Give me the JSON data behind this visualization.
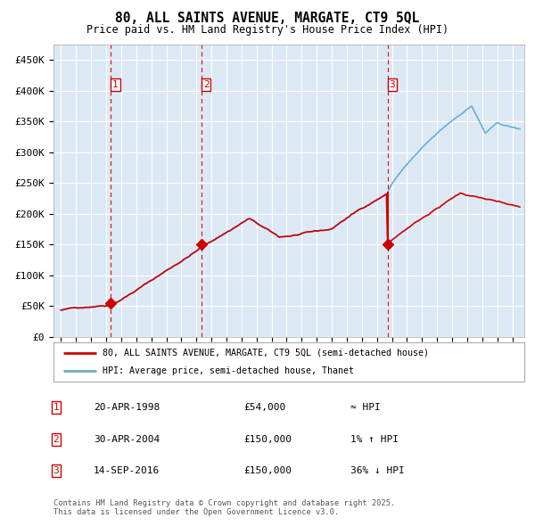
{
  "title_line1": "80, ALL SAINTS AVENUE, MARGATE, CT9 5QL",
  "title_line2": "Price paid vs. HM Land Registry's House Price Index (HPI)",
  "background_color": "#dce9f5",
  "plot_bg_color": "#dce9f5",
  "hpi_line_color": "#6baed6",
  "price_line_color": "#cc0000",
  "marker_color": "#cc0000",
  "grid_color": "#ffffff",
  "ylim": [
    0,
    475000
  ],
  "yticks": [
    0,
    50000,
    100000,
    150000,
    200000,
    250000,
    300000,
    350000,
    400000,
    450000
  ],
  "sale_dates_num": [
    1998.3,
    2004.33,
    2016.71
  ],
  "sale_prices": [
    54000,
    150000,
    150000
  ],
  "sale_labels": [
    "1",
    "2",
    "3"
  ],
  "legend_line1": "80, ALL SAINTS AVENUE, MARGATE, CT9 5QL (semi-detached house)",
  "legend_line2": "HPI: Average price, semi-detached house, Thanet",
  "table_entries": [
    {
      "num": "1",
      "date": "20-APR-1998",
      "price": "£54,000",
      "rel": "≈ HPI"
    },
    {
      "num": "2",
      "date": "30-APR-2004",
      "price": "£150,000",
      "rel": "1% ↑ HPI"
    },
    {
      "num": "3",
      "date": "14-SEP-2016",
      "price": "£150,000",
      "rel": "36% ↓ HPI"
    }
  ],
  "footnote": "Contains HM Land Registry data © Crown copyright and database right 2025.\nThis data is licensed under the Open Government Licence v3.0.",
  "xlim_start": 1994.5,
  "xlim_end": 2025.8
}
